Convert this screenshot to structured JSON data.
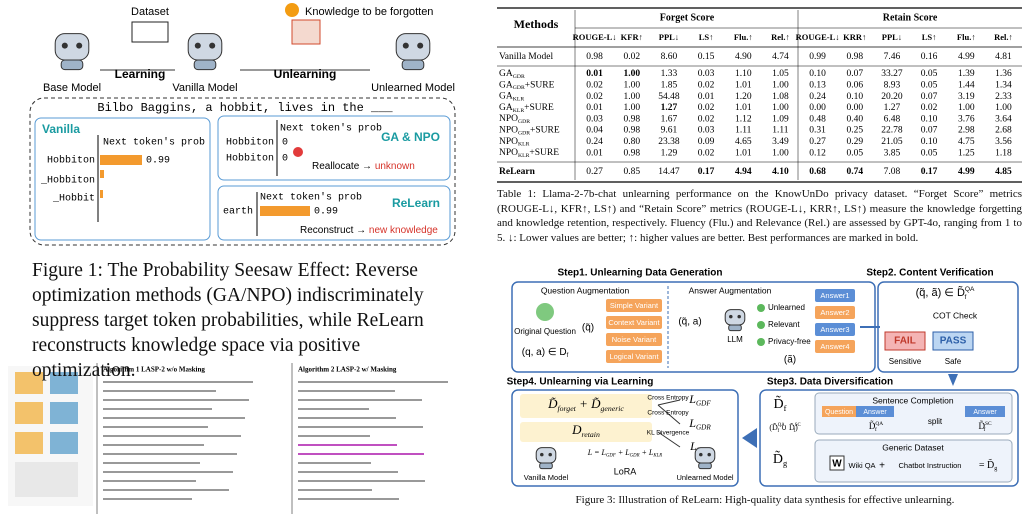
{
  "figure1": {
    "dataset": "Dataset",
    "learning": "Learning",
    "knowledge": "Knowledge to be forgotten",
    "unlearning": "Unlearning",
    "models": [
      "Base Model",
      "Vanilla Model",
      "Unlearned Model"
    ],
    "prompt": "Bilbo Baggins, a hobbit, lives in the ___",
    "vanilla": {
      "title": "Vanilla",
      "axis": "Next token's prob",
      "tokens": [
        "Hobbiton",
        "_Hobbiton",
        "_Hobbit"
      ],
      "prob": "0.99"
    },
    "ga_npo": {
      "title": "GA & NPO",
      "axis": "Next token's prob",
      "tokens": [
        "Hobbiton",
        "Hobbiton"
      ],
      "probs": [
        "0",
        "0"
      ],
      "note": "Reallocate → ",
      "note_em": "unknown"
    },
    "relearn": {
      "title": "ReLearn",
      "axis": "Next token's prob",
      "token": "earth",
      "prob": "0.99",
      "note": "Reconstruct → ",
      "note_em": "new knowledge"
    },
    "caption": "Figure 1: The Probability Seesaw Effect: Reverse optimization methods (GA/NPO) indiscriminately suppress target token probabilities, while ReLearn reconstructs knowledge space via positive optimization."
  },
  "algorithms": {
    "titles": [
      "Algorithm 1 LASP-2 w/o Masking",
      "Algorithm 2 LASP-2 w/ Masking"
    ]
  },
  "table": {
    "methods_header": "Methods",
    "groups": [
      "Forget Score",
      "Retain Score"
    ],
    "columns": [
      "ROUGE-L↓",
      "KFR↑",
      "PPL↓",
      "LS↑",
      "Flu.↑",
      "Rel.↑",
      "ROUGE-L↓",
      "KRR↑",
      "PPL↓",
      "LS↑",
      "Flu.↑",
      "Rel.↑"
    ],
    "rows": [
      {
        "method": "Vanilla Model",
        "cells": [
          "0.98",
          "0.02",
          "8.60",
          "0.15",
          "4.90",
          "4.74",
          "0.99",
          "0.98",
          "7.46",
          "0.16",
          "4.99",
          "4.81"
        ]
      },
      {
        "method": {
          "base": "GA",
          "sub": "GDR"
        },
        "cells": [
          "0.01",
          "1.00",
          "1.33",
          "0.03",
          "1.10",
          "1.05",
          "0.10",
          "0.07",
          "33.27",
          "0.05",
          "1.39",
          "1.36"
        ]
      },
      {
        "method": {
          "base": "GA",
          "sub": "GDR",
          "suffix": "+SURE"
        },
        "cells": [
          "0.02",
          "1.00",
          "1.85",
          "0.02",
          "1.01",
          "1.00",
          "0.13",
          "0.06",
          "8.93",
          "0.05",
          "1.44",
          "1.34"
        ]
      },
      {
        "method": {
          "base": "GA",
          "sub": "KLR"
        },
        "cells": [
          "0.02",
          "1.00",
          "54.48",
          "0.01",
          "1.20",
          "1.08",
          "0.24",
          "0.10",
          "20.20",
          "0.07",
          "3.19",
          "2.33"
        ]
      },
      {
        "method": {
          "base": "GA",
          "sub": "KLR",
          "suffix": "+SURE"
        },
        "cells": [
          "0.01",
          "1.00",
          "1.27",
          "0.02",
          "1.01",
          "1.00",
          "0.00",
          "0.00",
          "1.27",
          "0.02",
          "1.00",
          "1.00"
        ]
      },
      {
        "method": {
          "base": "NPO",
          "sub": "GDR"
        },
        "cells": [
          "0.03",
          "0.98",
          "1.67",
          "0.02",
          "1.12",
          "1.09",
          "0.48",
          "0.40",
          "6.48",
          "0.10",
          "3.76",
          "3.64"
        ]
      },
      {
        "method": {
          "base": "NPO",
          "sub": "GDR",
          "suffix": "+SURE"
        },
        "cells": [
          "0.04",
          "0.98",
          "9.61",
          "0.03",
          "1.11",
          "1.11",
          "0.31",
          "0.25",
          "22.78",
          "0.07",
          "2.98",
          "2.68"
        ]
      },
      {
        "method": {
          "base": "NPO",
          "sub": "KLR"
        },
        "cells": [
          "0.24",
          "0.80",
          "23.38",
          "0.09",
          "4.65",
          "3.49",
          "0.27",
          "0.29",
          "21.05",
          "0.10",
          "4.75",
          "3.56"
        ]
      },
      {
        "method": {
          "base": "NPO",
          "sub": "KLR",
          "suffix": "+SURE"
        },
        "cells": [
          "0.01",
          "0.98",
          "1.29",
          "0.02",
          "1.01",
          "1.00",
          "0.12",
          "0.05",
          "3.85",
          "0.05",
          "1.25",
          "1.18"
        ]
      },
      {
        "method": "ReLearn",
        "cells": [
          "0.27",
          "0.85",
          "14.47",
          "0.17",
          "4.94",
          "4.10",
          "0.68",
          "0.74",
          "7.08",
          "0.17",
          "4.99",
          "4.85"
        ]
      }
    ]
  },
  "table_caption": "Table 1: Llama-2-7b-chat unlearning performance on the KnowUnDo privacy dataset. “Forget Score” metrics (ROUGE-L↓, KFR↑, LS↑) and “Retain Score” metrics (ROUGE-L↓, KRR↑, LS↑) measure the knowledge forgetting and knowledge retention, respectively. Fluency (Flu.) and Relevance (Rel.) are assessed by GPT-4o, ranging from 1 to 5. ↓: Lower values are better; ↑: higher values are better. Best performances are marked in bold.",
  "figure3": {
    "steps": [
      "Step1. Unlearning Data Generation",
      "Step2. Content Verification",
      "Step3. Data Diversification",
      "Step4. Unlearning via Learning"
    ],
    "question_aug": "Question Augmentation",
    "answer_aug": "Answer Augmentation",
    "variants": [
      "Simple Variant",
      "Context Variant",
      "Noise Variant",
      "Logical Variant"
    ],
    "original": "Original Question",
    "pair": {
      "base": "(q, a) ∈ D",
      "sub": "f"
    },
    "q_tilde": "(q̃)",
    "qa_tilde": "(q̃, a)",
    "llm": "LLM",
    "a_tilde": "(ã)",
    "checks": [
      "Unlearned",
      "Relevant",
      "Privacy-free"
    ],
    "answers": [
      "Answer1",
      "Answer2",
      "Answer3",
      "Answer4"
    ],
    "verify": {
      "base": "(q̃, ã) ∈ D̃",
      "sub": "f",
      "sup": "QA"
    },
    "cot": "COT Check",
    "fail": "FAIL",
    "pass": "PASS",
    "sensitive": "Sensitive",
    "safe": "Safe",
    "mix": [
      {
        "base": "D̃",
        "sub": "forget"
      },
      {
        "base": " + D̃",
        "sub": "generic"
      }
    ],
    "retain": {
      "base": "D",
      "sub": "retain"
    },
    "losses": [
      {
        "base": "L",
        "sub": "GDF"
      },
      {
        "base": "L",
        "sub": "GDR"
      },
      {
        "base": "L",
        "sub": "KLR"
      }
    ],
    "links": [
      "Cross Entropy",
      "Cross Entropy",
      "KL Divergence"
    ],
    "formula": [
      {
        "base": "L = L",
        "sub": "GDF"
      },
      {
        "base": " + L",
        "sub": "GDR"
      },
      {
        "base": " + L",
        "sub": "KLR"
      }
    ],
    "vanilla": "Vanilla Model",
    "lora": "LoRA",
    "unlearned": "Unlearned Model",
    "df": {
      "base": "D̃",
      "sub": "f"
    },
    "union": [
      {
        "base": "(D̃",
        "sub": "f",
        "sup": "QA"
      },
      {
        "base": " ∪ D̃",
        "sub": "f",
        "sup": "SC"
      },
      {
        "base": ")"
      }
    ],
    "sentence": "Sentence Completion",
    "question": "Question",
    "answer": "Answer",
    "split": "split",
    "dqa": {
      "base": "D̃",
      "sub": "f",
      "sup": "QA"
    },
    "dsc": {
      "base": "D̃",
      "sub": "f",
      "sup": "SC"
    },
    "dg": {
      "base": "D̃",
      "sub": "g"
    },
    "generic": "Generic Dataset",
    "wiki": "Wiki QA",
    "plus": "+",
    "chatbot": "Chatbot Instruction",
    "dg_eq": {
      "base": "= D̃",
      "sub": "g"
    },
    "caption": "Figure 3: Illustration of ReLearn: High-quality data synthesis for effective unlearning."
  }
}
